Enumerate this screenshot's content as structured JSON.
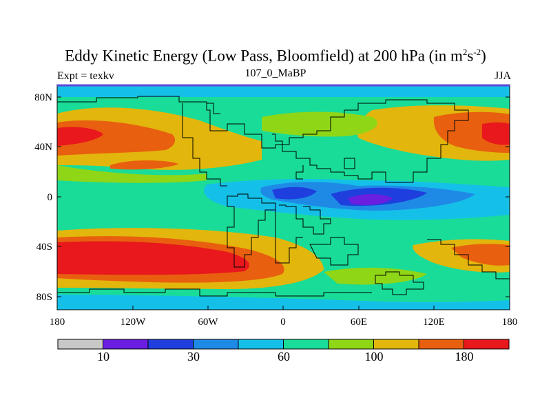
{
  "title": {
    "main": "Eddy Kinetic Energy (Low Pass, Bloomfield) at 200 hPa (in m",
    "sup1": "2",
    "mid": "s",
    "sup2": "-2",
    "end": ")"
  },
  "left_label": "Expt = texkv",
  "center_label": "107_0_MaBP",
  "right_label": "JJA",
  "axes": {
    "x_ticks": [
      "180",
      "120W",
      "60W",
      "0",
      "60E",
      "120E",
      "180"
    ],
    "y_ticks": [
      "80N",
      "40N",
      "0",
      "40S",
      "80S"
    ]
  },
  "colorbar": {
    "colors": [
      "#c8c8c8",
      "#6a1ee0",
      "#1e3fdd",
      "#1f8ae6",
      "#15c0e8",
      "#19dc98",
      "#8fd617",
      "#e2b60c",
      "#e8600f",
      "#e8181c"
    ],
    "labels": [
      "10",
      "30",
      "60",
      "100",
      "180"
    ]
  },
  "colors": {
    "ocean_bg": "#19dc98",
    "land_outline": "#000000",
    "frame_top": "#5a48d8"
  }
}
